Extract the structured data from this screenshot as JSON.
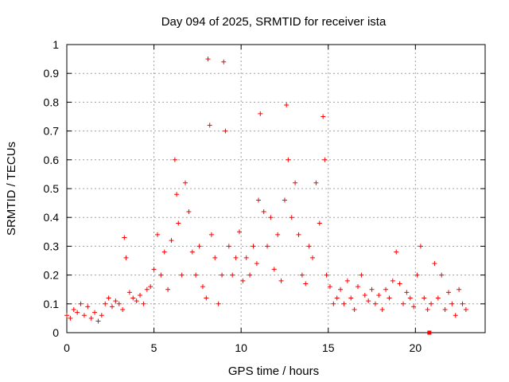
{
  "chart_data": {
    "type": "scatter",
    "title": "Day 094 of 2025, SRMTID for receiver ista",
    "xlabel": "GPS time / hours",
    "ylabel": "SRMTID / TECUs",
    "xlim": [
      0,
      24
    ],
    "ylim": [
      0,
      1
    ],
    "xticks": [
      0,
      5,
      10,
      15,
      20
    ],
    "xtick_labels": [
      "0",
      "5",
      "10",
      "15",
      "20"
    ],
    "yticks": [
      0,
      0.1,
      0.2,
      0.3,
      0.4,
      0.5,
      0.6,
      0.7,
      0.8,
      0.9,
      1
    ],
    "ytick_labels": [
      "0",
      "0.1",
      "0.2",
      "0.3",
      "0.4",
      "0.5",
      "0.6",
      "0.7",
      "0.8",
      "0.9",
      "1"
    ],
    "grid": true,
    "marker": "+",
    "color": "#ff0000",
    "series": [
      {
        "name": "SRMTID",
        "x": [
          0.0,
          0.2,
          0.4,
          0.6,
          0.8,
          1.0,
          1.2,
          1.4,
          1.6,
          1.8,
          2.0,
          2.2,
          2.4,
          2.6,
          2.8,
          3.0,
          3.2,
          3.3,
          3.4,
          3.6,
          3.8,
          4.0,
          4.2,
          4.4,
          4.6,
          4.8,
          5.0,
          5.2,
          5.4,
          5.6,
          5.8,
          6.0,
          6.2,
          6.3,
          6.4,
          6.6,
          6.8,
          7.0,
          7.2,
          7.4,
          7.6,
          7.8,
          8.0,
          8.1,
          8.2,
          8.3,
          8.5,
          8.7,
          8.9,
          9.0,
          9.1,
          9.3,
          9.5,
          9.7,
          9.9,
          10.1,
          10.3,
          10.5,
          10.7,
          10.9,
          11.0,
          11.1,
          11.3,
          11.5,
          11.7,
          11.9,
          12.1,
          12.3,
          12.5,
          12.6,
          12.7,
          12.9,
          13.1,
          13.3,
          13.5,
          13.7,
          13.9,
          14.1,
          14.3,
          14.5,
          14.7,
          14.8,
          14.9,
          15.1,
          15.3,
          15.5,
          15.7,
          15.9,
          16.1,
          16.3,
          16.5,
          16.7,
          16.9,
          17.1,
          17.3,
          17.5,
          17.7,
          17.9,
          18.1,
          18.3,
          18.5,
          18.7,
          18.9,
          19.1,
          19.3,
          19.5,
          19.7,
          19.9,
          20.1,
          20.3,
          20.5,
          20.7,
          20.9,
          21.1,
          21.3,
          21.5,
          21.7,
          21.9,
          22.1,
          22.3,
          22.5,
          22.7,
          22.9
        ],
        "y": [
          0.06,
          0.05,
          0.08,
          0.07,
          0.1,
          0.06,
          0.09,
          0.05,
          0.07,
          0.04,
          0.06,
          0.1,
          0.12,
          0.09,
          0.11,
          0.1,
          0.08,
          0.33,
          0.26,
          0.14,
          0.12,
          0.11,
          0.13,
          0.1,
          0.15,
          0.16,
          0.22,
          0.34,
          0.2,
          0.28,
          0.15,
          0.32,
          0.6,
          0.48,
          0.38,
          0.2,
          0.52,
          0.42,
          0.28,
          0.2,
          0.3,
          0.16,
          0.12,
          0.95,
          0.72,
          0.34,
          0.26,
          0.1,
          0.2,
          0.94,
          0.7,
          0.3,
          0.2,
          0.26,
          0.35,
          0.18,
          0.26,
          0.2,
          0.3,
          0.24,
          0.46,
          0.76,
          0.42,
          0.3,
          0.4,
          0.22,
          0.34,
          0.18,
          0.46,
          0.79,
          0.6,
          0.4,
          0.52,
          0.34,
          0.2,
          0.17,
          0.3,
          0.26,
          0.52,
          0.38,
          0.75,
          0.6,
          0.2,
          0.16,
          0.1,
          0.12,
          0.15,
          0.1,
          0.18,
          0.12,
          0.08,
          0.16,
          0.2,
          0.13,
          0.11,
          0.15,
          0.1,
          0.13,
          0.08,
          0.15,
          0.12,
          0.18,
          0.28,
          0.17,
          0.1,
          0.14,
          0.12,
          0.09,
          0.2,
          0.3,
          0.12,
          0.08,
          0.1,
          0.24,
          0.12,
          0.2,
          0.08,
          0.14,
          0.1,
          0.06,
          0.15,
          0.1,
          0.08
        ],
        "outlier": {
          "x": 20.8,
          "y": 0.0
        }
      }
    ]
  }
}
